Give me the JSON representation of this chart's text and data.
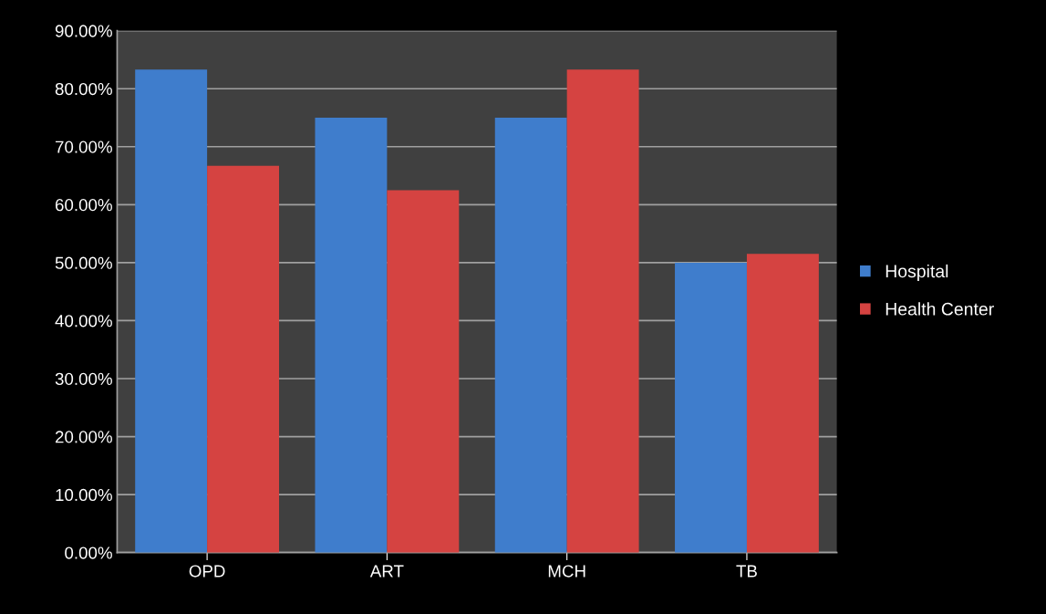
{
  "chart_data": {
    "type": "bar",
    "categories": [
      "OPD",
      "ART",
      "MCH",
      "TB"
    ],
    "series": [
      {
        "name": "Hospital",
        "color": "#3f7dcc",
        "values": [
          83.3,
          75,
          75,
          50
        ]
      },
      {
        "name": "Health Center",
        "color": "#d54341",
        "values": [
          66.7,
          62.5,
          83.3,
          51.5
        ]
      }
    ],
    "ylim": [
      0,
      90
    ],
    "yticks": [
      {
        "value": 0,
        "label": "0.00%"
      },
      {
        "value": 10,
        "label": "10.00%"
      },
      {
        "value": 20,
        "label": "20.00%"
      },
      {
        "value": 30,
        "label": "30.00%"
      },
      {
        "value": 40,
        "label": "40.00%"
      },
      {
        "value": 50,
        "label": "50.00%"
      },
      {
        "value": 60,
        "label": "60.00%"
      },
      {
        "value": 70,
        "label": "70.00%"
      },
      {
        "value": 80,
        "label": "80.00%"
      },
      {
        "value": 90,
        "label": "90.00%"
      }
    ],
    "grid": "y",
    "legend": "right"
  }
}
